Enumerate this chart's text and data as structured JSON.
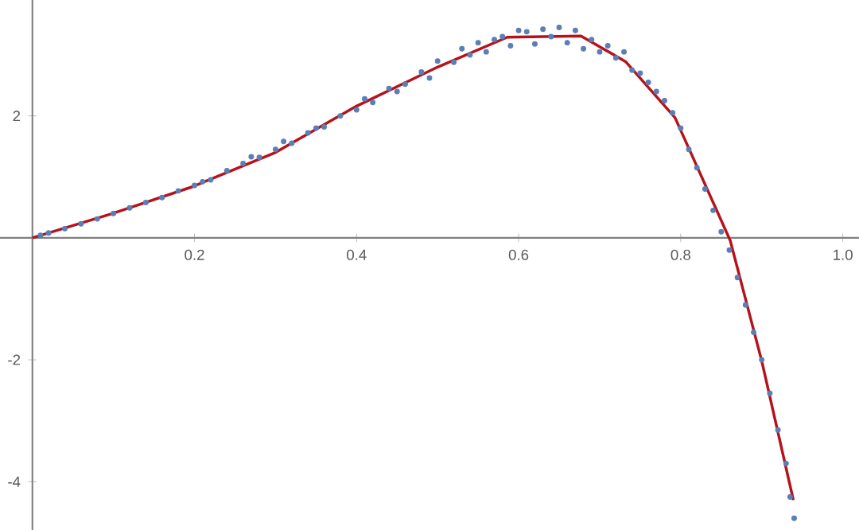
{
  "chart_data": {
    "type": "scatter",
    "xlim": [
      -0.04,
      1.02
    ],
    "ylim": [
      -4.8,
      3.9
    ],
    "xticks": [
      0.2,
      0.4,
      0.6,
      0.8,
      {
        "value": 1,
        "label": "1.0"
      }
    ],
    "yticks": [
      -4,
      -2,
      2
    ],
    "grid": false,
    "series": [
      {
        "marker": "circle",
        "color": "#5b7fb5",
        "x": [
          0.01,
          0.02,
          0.04,
          0.06,
          0.08,
          0.1,
          0.12,
          0.14,
          0.16,
          0.18,
          0.2,
          0.21,
          0.22,
          0.24,
          0.26,
          0.27,
          0.28,
          0.3,
          0.31,
          0.32,
          0.34,
          0.35,
          0.36,
          0.38,
          0.4,
          0.41,
          0.42,
          0.44,
          0.45,
          0.46,
          0.48,
          0.49,
          0.5,
          0.52,
          0.53,
          0.54,
          0.55,
          0.56,
          0.57,
          0.58,
          0.59,
          0.6,
          0.61,
          0.62,
          0.63,
          0.64,
          0.65,
          0.66,
          0.67,
          0.68,
          0.69,
          0.7,
          0.71,
          0.72,
          0.73,
          0.74,
          0.75,
          0.76,
          0.77,
          0.78,
          0.79,
          0.8,
          0.81,
          0.82,
          0.83,
          0.84,
          0.85,
          0.86,
          0.87,
          0.88,
          0.89,
          0.9,
          0.91,
          0.92,
          0.93,
          0.935,
          0.94
        ],
        "values": [
          0.04,
          0.08,
          0.15,
          0.23,
          0.31,
          0.4,
          0.49,
          0.58,
          0.66,
          0.77,
          0.86,
          0.92,
          0.95,
          1.1,
          1.22,
          1.33,
          1.32,
          1.45,
          1.58,
          1.55,
          1.72,
          1.8,
          1.82,
          2.0,
          2.1,
          2.28,
          2.22,
          2.45,
          2.4,
          2.52,
          2.72,
          2.62,
          2.9,
          2.88,
          3.1,
          3.0,
          3.2,
          3.05,
          3.25,
          3.3,
          3.15,
          3.4,
          3.38,
          3.18,
          3.42,
          3.3,
          3.45,
          3.2,
          3.4,
          3.1,
          3.25,
          3.05,
          3.15,
          2.95,
          3.05,
          2.75,
          2.7,
          2.55,
          2.4,
          2.25,
          2.05,
          1.8,
          1.45,
          1.15,
          0.8,
          0.45,
          0.1,
          -0.2,
          -0.65,
          -1.1,
          -1.55,
          -2.0,
          -2.55,
          -3.15,
          -3.7,
          -4.25,
          -4.6
        ]
      },
      {
        "type": "line",
        "marker": "none",
        "line_style": "solid",
        "color": "#b5121b",
        "x": [
          0,
          0.097,
          0.198,
          0.3,
          0.4,
          0.5,
          0.586,
          0.677,
          0.732,
          0.793,
          0.861,
          0.9,
          0.939
        ],
        "values": [
          0,
          0.39,
          0.84,
          1.4,
          2.16,
          2.8,
          3.29,
          3.31,
          2.89,
          1.97,
          -0.04,
          -2.02,
          -4.3
        ]
      }
    ]
  }
}
